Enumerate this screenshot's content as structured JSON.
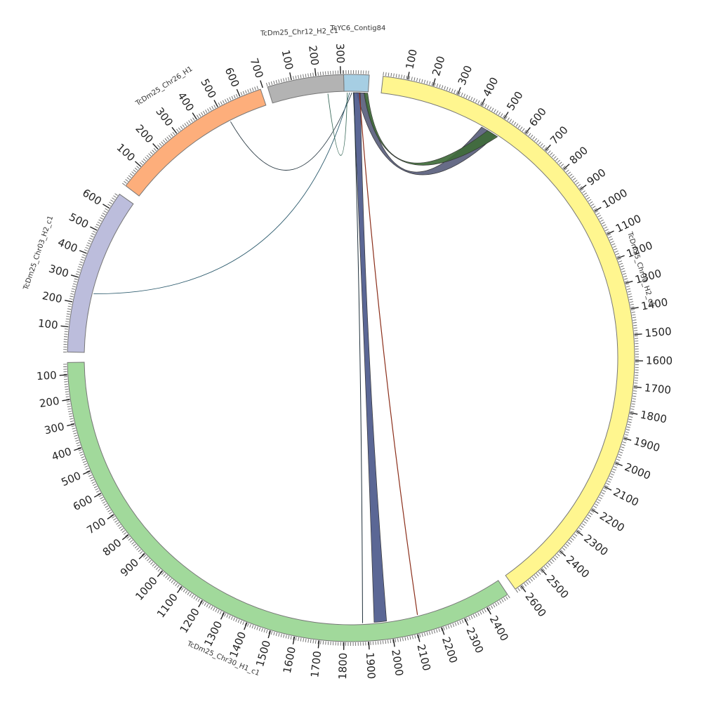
{
  "chart_data": {
    "type": "chord",
    "segments": [
      {
        "id": "contig84",
        "label": "TcYC6_Contig84",
        "color": "#a6cee3",
        "tick_labels": []
      },
      {
        "id": "chr30h2",
        "label": "TcDm25_Chr30_H2_c1",
        "color": "#fff68f",
        "tick_labels": [
          "100",
          "200",
          "300",
          "400",
          "500",
          "600",
          "700",
          "800",
          "900",
          "1000",
          "1100",
          "1200",
          "1300",
          "1400",
          "1500",
          "1600",
          "1700",
          "1800",
          "1900",
          "2000",
          "2100",
          "2200",
          "2300",
          "2400",
          "2500",
          "2600"
        ]
      },
      {
        "id": "chr30h1",
        "label": "TcDm25_Chr30_H1_c1",
        "color": "#a1d99b",
        "tick_labels": [
          "100",
          "200",
          "300",
          "400",
          "500",
          "600",
          "700",
          "800",
          "900",
          "1000",
          "1100",
          "1200",
          "1300",
          "1400",
          "1500",
          "1600",
          "1700",
          "1800",
          "1900",
          "2000",
          "2100",
          "2200",
          "2300",
          "2400"
        ]
      },
      {
        "id": "chr03h2",
        "label": "TcDm25_Chr03_H2_c1",
        "color": "#bcbddc",
        "tick_labels": [
          "100",
          "200",
          "300",
          "400",
          "500",
          "600"
        ]
      },
      {
        "id": "chr26h1",
        "label": "TcDm25_Chr26_H1",
        "color": "#fdae7b",
        "tick_labels": [
          "100",
          "200",
          "300",
          "400",
          "500",
          "600",
          "700"
        ]
      },
      {
        "id": "chr12h2",
        "label": "TcDm25_Chr12_H2_c1",
        "color": "#b3b3b3",
        "tick_labels": [
          "100",
          "200",
          "300"
        ]
      }
    ],
    "links": [
      {
        "from": "contig84",
        "to": "chr30h2",
        "color": "#5a5f7d"
      },
      {
        "from": "contig84",
        "to": "chr30h1",
        "color": "#4d5a8c"
      },
      {
        "from": "contig84",
        "to": "chr30h2",
        "color": "#3f6b3a"
      },
      {
        "from": "contig84",
        "to": "chr30h1",
        "color": "#8b2e1a"
      },
      {
        "from": "contig84",
        "to": "chr30h1",
        "color": "#1e2f3a"
      },
      {
        "from": "contig84",
        "to": "chr26h1",
        "color": "#2a3a44"
      },
      {
        "from": "contig84",
        "to": "chr03h2",
        "color": "#2e5c6e"
      },
      {
        "from": "contig84",
        "to": "chr12h2",
        "color": "#3a6a5a"
      }
    ]
  }
}
